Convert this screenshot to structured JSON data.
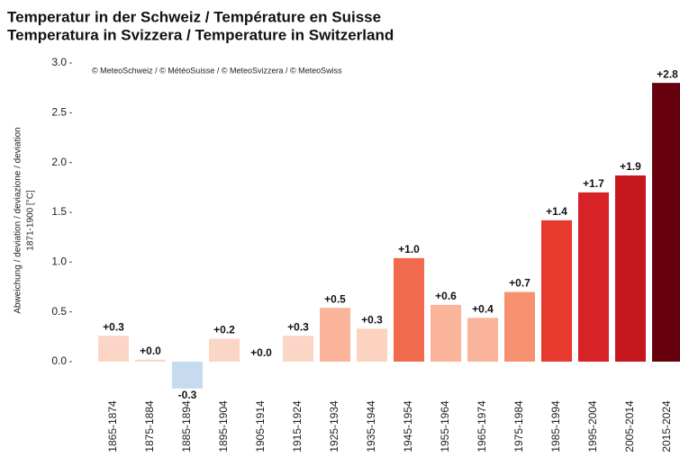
{
  "chart_data": {
    "type": "bar",
    "title": "Temperatur in der Schweiz / Température en Suisse",
    "subtitle": "Temperatura in Svizzera / Temperature in Switzerland",
    "annotation": "© MeteoSchweiz / © MétéoSuisse / © MeteoSvizzera / © MeteoSwiss",
    "y_label": [
      "Abweichung / deviation / deviazione / deviation",
      "1871-1900 [°C]"
    ],
    "categories": [
      "1865-1874",
      "1875-1884",
      "1885-1894",
      "1895-1904",
      "1905-1914",
      "1915-1924",
      "1925-1934",
      "1935-1944",
      "1945-1954",
      "1955-1964",
      "1965-1974",
      "1975-1984",
      "1985-1994",
      "1995-2004",
      "2005-2014",
      "2015-2024"
    ],
    "values": [
      0.26,
      0.02,
      -0.27,
      0.23,
      0.0,
      0.26,
      0.54,
      0.33,
      1.04,
      0.57,
      0.44,
      0.7,
      1.42,
      1.7,
      1.87,
      2.8
    ],
    "value_labels": [
      "+0.3",
      "+0.0",
      "-0.3",
      "+0.2",
      "+0.0",
      "+0.3",
      "+0.5",
      "+0.3",
      "+1.0",
      "+0.6",
      "+0.4",
      "+0.7",
      "+1.4",
      "+1.7",
      "+1.9",
      "+2.8"
    ],
    "colors": [
      "#fbd5c5",
      "#fbd5c5",
      "#c6dbef",
      "#fbd5c5",
      "#fbd5c5",
      "#fbd5c5",
      "#f9b49a",
      "#fcd3c1",
      "#f26a4d",
      "#f9b49a",
      "#f9b49a",
      "#f7906f",
      "#e8392f",
      "#d72327",
      "#c4161c",
      "#67000d"
    ],
    "ylim": [
      -0.3,
      3.0
    ],
    "yticks": [
      {
        "value": 0,
        "label": "0.0"
      },
      {
        "value": 0.5,
        "label": "0.5"
      },
      {
        "value": 1,
        "label": "1.0"
      },
      {
        "value": 1.5,
        "label": "1.5"
      },
      {
        "value": 2,
        "label": "2.0"
      },
      {
        "value": 2.5,
        "label": "2.5"
      },
      {
        "value": 3,
        "label": "3.0"
      }
    ],
    "grid": false
  }
}
